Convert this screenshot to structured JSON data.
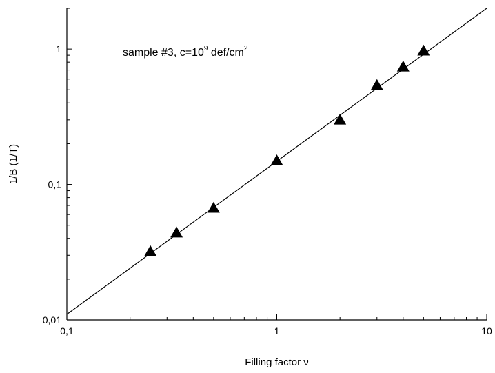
{
  "chart_data": {
    "type": "scatter",
    "x_scale": "log",
    "y_scale": "log",
    "xlabel": "Filling factor ν",
    "ylabel": "1/B (1/T)",
    "xlim": [
      0.1,
      10
    ],
    "ylim": [
      0.01,
      2
    ],
    "x_ticks": [
      {
        "value": 0.1,
        "label": "0,1"
      },
      {
        "value": 1,
        "label": "1"
      },
      {
        "value": 10,
        "label": "10"
      }
    ],
    "y_ticks": [
      {
        "value": 0.01,
        "label": "0,01"
      },
      {
        "value": 0.1,
        "label": "0,1"
      },
      {
        "value": 1,
        "label": "1"
      }
    ],
    "grid": false,
    "annotation": {
      "prefix": "sample #3, c=10",
      "exponent": "9",
      "unit": " def/cm",
      "unit_exponent": "2"
    },
    "series": [
      {
        "marker": "triangle",
        "color": "#000000",
        "points": [
          {
            "x": 0.25,
            "y": 0.032
          },
          {
            "x": 0.333,
            "y": 0.044
          },
          {
            "x": 0.5,
            "y": 0.067
          },
          {
            "x": 1,
            "y": 0.15
          },
          {
            "x": 2,
            "y": 0.3
          },
          {
            "x": 3,
            "y": 0.54
          },
          {
            "x": 4,
            "y": 0.74
          },
          {
            "x": 5,
            "y": 0.97
          }
        ]
      }
    ],
    "fit_line": {
      "x": [
        0.1,
        10
      ],
      "y": [
        0.011,
        2.0
      ]
    }
  }
}
